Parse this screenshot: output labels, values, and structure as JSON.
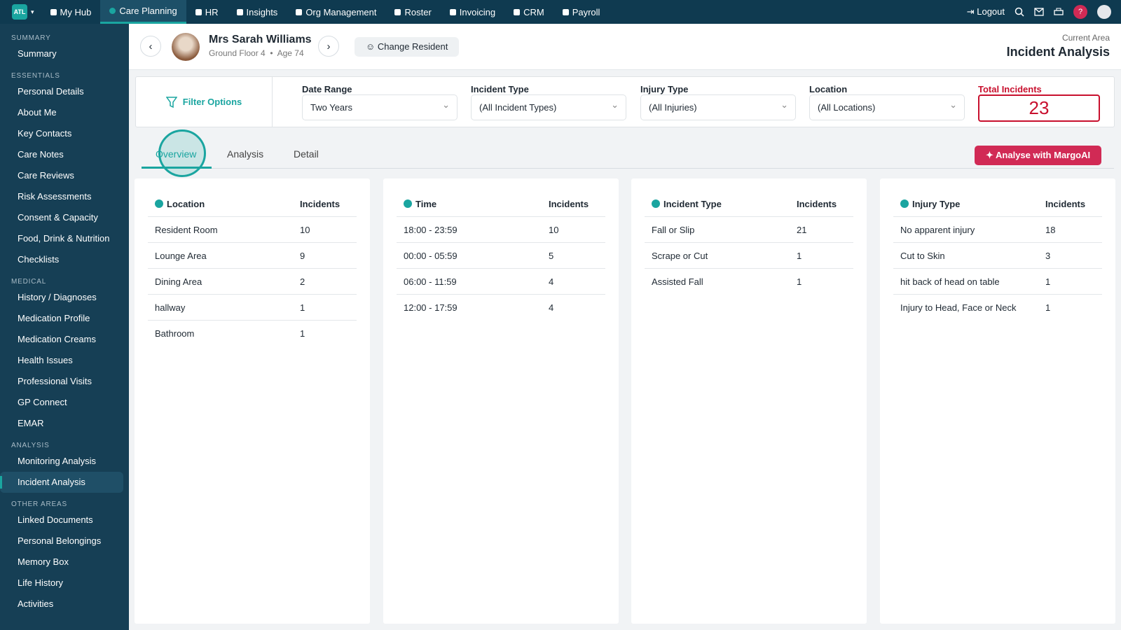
{
  "nav": {
    "logo": "ATL",
    "items": [
      "My Hub",
      "Care Planning",
      "HR",
      "Insights",
      "Org Management",
      "Roster",
      "Invoicing",
      "CRM",
      "Payroll"
    ],
    "logout": "Logout",
    "help": "?"
  },
  "sidebar": [
    {
      "heading": "SUMMARY",
      "items": [
        "Summary"
      ]
    },
    {
      "heading": "ESSENTIALS",
      "items": [
        "Personal Details",
        "About Me",
        "Key Contacts",
        "Care Notes",
        "Care Reviews",
        "Risk Assessments",
        "Consent & Capacity",
        "Food, Drink & Nutrition",
        "Checklists"
      ]
    },
    {
      "heading": "MEDICAL",
      "items": [
        "History / Diagnoses",
        "Medication Profile",
        "Medication Creams",
        "Health Issues",
        "Professional Visits",
        "GP Connect",
        "EMAR"
      ]
    },
    {
      "heading": "ANALYSIS",
      "items": [
        "Monitoring Analysis",
        "Incident Analysis"
      ]
    },
    {
      "heading": "OTHER AREAS",
      "items": [
        "Linked Documents",
        "Personal Belongings",
        "Memory Box",
        "Life History",
        "Activities"
      ]
    }
  ],
  "resident": {
    "name": "Mrs Sarah Williams",
    "floor": "Ground Floor 4",
    "age": "Age 74",
    "change_button": "Change Resident"
  },
  "current_area": {
    "label": "Current Area",
    "title": "Incident Analysis"
  },
  "filters": {
    "title": "Filter Options",
    "fields": [
      {
        "label": "Date Range",
        "value": "Two Years"
      },
      {
        "label": "Incident Type",
        "value": "(All Incident Types)"
      },
      {
        "label": "Injury Type",
        "value": "(All Injuries)"
      },
      {
        "label": "Location",
        "value": "(All Locations)"
      }
    ],
    "total": {
      "label": "Total Incidents",
      "value": 23
    }
  },
  "tabs": [
    "Overview",
    "Analysis",
    "Detail"
  ],
  "ai_button": "Analyse with MargoAI",
  "tables": [
    {
      "title": "Location",
      "count_header": "Incidents",
      "rows": [
        [
          "Resident Room",
          10
        ],
        [
          "Lounge Area",
          9
        ],
        [
          "Dining Area",
          2
        ],
        [
          "hallway",
          1
        ],
        [
          "Bathroom",
          1
        ]
      ]
    },
    {
      "title": "Time",
      "count_header": "Incidents",
      "rows": [
        [
          "18:00 - 23:59",
          10
        ],
        [
          "00:00 - 05:59",
          5
        ],
        [
          "06:00 - 11:59",
          4
        ],
        [
          "12:00 - 17:59",
          4
        ]
      ]
    },
    {
      "title": "Incident Type",
      "count_header": "Incidents",
      "rows": [
        [
          "Fall or Slip",
          21
        ],
        [
          "Scrape or Cut",
          1
        ],
        [
          "Assisted Fall",
          1
        ]
      ]
    },
    {
      "title": "Injury Type",
      "count_header": "Incidents",
      "rows": [
        [
          "No apparent injury",
          18
        ],
        [
          "Cut to Skin",
          3
        ],
        [
          "hit back of head on table",
          1
        ],
        [
          "Injury to Head, Face or Neck",
          1
        ]
      ]
    }
  ]
}
